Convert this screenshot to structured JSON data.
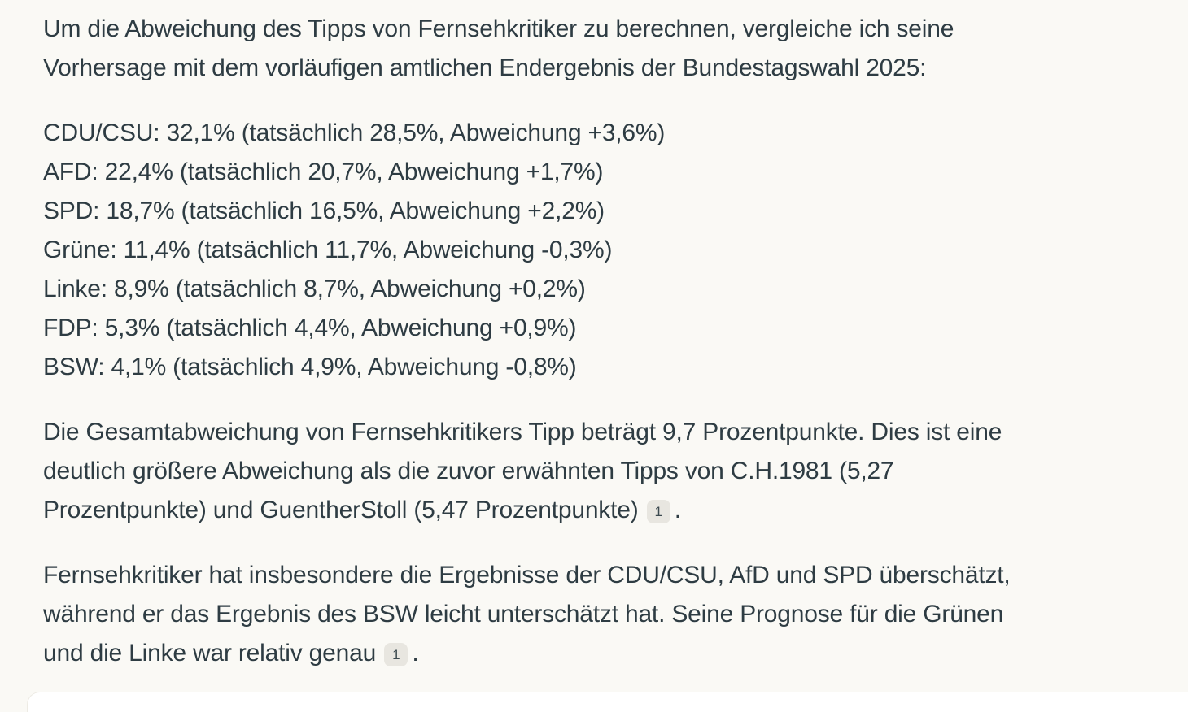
{
  "theme": {
    "background": "#faf9f5",
    "text_color": "#2e3c43",
    "citation_bg": "#e8e6e0",
    "citation_text": "#3c4a50",
    "input_bg": "#ffffff",
    "input_border": "#edebe4"
  },
  "content": {
    "intro": {
      "lines": [
        "Um die Abweichung des Tipps von Fernsehkritiker zu berechnen, vergleiche ich seine",
        "Vorhersage mit dem vorläufigen amtlichen Endergebnis der Bundestagswahl 2025:"
      ]
    },
    "results": {
      "items": [
        "CDU/CSU: 32,1% (tatsächlich 28,5%, Abweichung +3,6%)",
        "AFD: 22,4% (tatsächlich 20,7%, Abweichung +1,7%)",
        "SPD: 18,7% (tatsächlich 16,5%, Abweichung +2,2%)",
        "Grüne: 11,4% (tatsächlich 11,7%, Abweichung -0,3%)",
        "Linke: 8,9% (tatsächlich 8,7%, Abweichung +0,2%)",
        "FDP: 5,3% (tatsächlich 4,4%, Abweichung +0,9%)",
        "BSW: 4,1% (tatsächlich 4,9%, Abweichung -0,8%)"
      ],
      "parties": [
        {
          "party": "CDU/CSU",
          "tipp": "32,1%",
          "tatsaechlich": "28,5%",
          "abweichung": "+3,6%"
        },
        {
          "party": "AFD",
          "tipp": "22,4%",
          "tatsaechlich": "20,7%",
          "abweichung": "+1,7%"
        },
        {
          "party": "SPD",
          "tipp": "18,7%",
          "tatsaechlich": "16,5%",
          "abweichung": "+2,2%"
        },
        {
          "party": "Grüne",
          "tipp": "11,4%",
          "tatsaechlich": "11,7%",
          "abweichung": "-0,3%"
        },
        {
          "party": "Linke",
          "tipp": "8,9%",
          "tatsaechlich": "8,7%",
          "abweichung": "+0,2%"
        },
        {
          "party": "FDP",
          "tipp": "5,3%",
          "tatsaechlich": "4,4%",
          "abweichung": "+0,9%"
        },
        {
          "party": "BSW",
          "tipp": "4,1%",
          "tatsaechlich": "4,9%",
          "abweichung": "-0,8%"
        }
      ]
    },
    "total": {
      "lines": [
        "Die Gesamtabweichung von Fernsehkritikers Tipp beträgt 9,7 Prozentpunkte. Dies ist eine",
        "deutlich größere Abweichung als die zuvor erwähnten Tipps von C.H.1981 (5,27",
        "Prozentpunkte) und GuentherStoll (5,47 Prozentpunkte)"
      ],
      "citation": "1",
      "after_citation": "."
    },
    "summary": {
      "lines": [
        "Fernsehkritiker hat insbesondere die Ergebnisse der CDU/CSU, AfD und SPD überschätzt,",
        "während er das Ergebnis des BSW leicht unterschätzt hat. Seine Prognose für die Grünen",
        "und die Linke war relativ genau"
      ],
      "citation": "1",
      "after_citation": "."
    }
  }
}
